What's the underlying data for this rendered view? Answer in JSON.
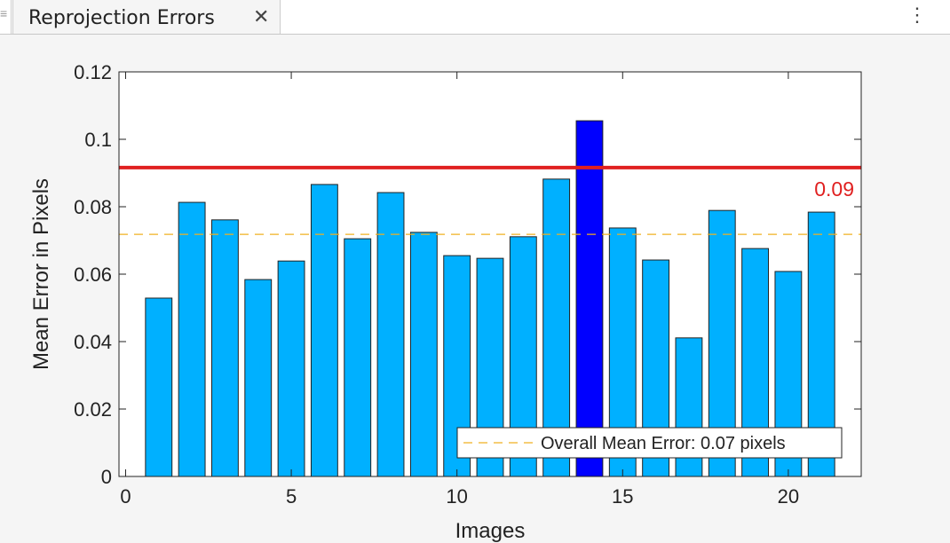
{
  "tab": {
    "title": "Reprojection Errors",
    "close_icon": "close-icon",
    "menu_icon": "more-vertical-icon"
  },
  "chart_data": {
    "type": "bar",
    "title": "",
    "xlabel": "Images",
    "ylabel": "Mean Error in Pixels",
    "xlim": [
      -0.2,
      22.2
    ],
    "ylim": [
      0,
      0.12
    ],
    "xticks": [
      0,
      5,
      10,
      15,
      20
    ],
    "yticks": [
      0,
      0.02,
      0.04,
      0.06,
      0.08,
      0.1,
      0.12
    ],
    "ytick_labels": [
      "0",
      "0.02",
      "0.04",
      "0.06",
      "0.08",
      "0.1",
      "0.12"
    ],
    "grid": false,
    "x": [
      1,
      2,
      3,
      4,
      5,
      6,
      7,
      8,
      9,
      10,
      11,
      12,
      13,
      14,
      15,
      16,
      17,
      18,
      19,
      20,
      21
    ],
    "values": [
      0.0529,
      0.0813,
      0.0761,
      0.0584,
      0.0639,
      0.0866,
      0.0705,
      0.0842,
      0.0724,
      0.0655,
      0.0647,
      0.0711,
      0.0882,
      0.1055,
      0.0737,
      0.0642,
      0.0411,
      0.0789,
      0.0676,
      0.0608,
      0.0784
    ],
    "bar_color": "#00b0ff",
    "highlighted_index": 14,
    "highlight_color": "#0000ff",
    "threshold": {
      "value": 0.0916,
      "label": "0.09",
      "color": "#e02020"
    },
    "mean_line": {
      "value": 0.0718,
      "color": "#f0b020"
    },
    "legend": {
      "entries": [
        "Overall Mean Error: 0.07 pixels"
      ],
      "placement": "bottom-right"
    }
  }
}
